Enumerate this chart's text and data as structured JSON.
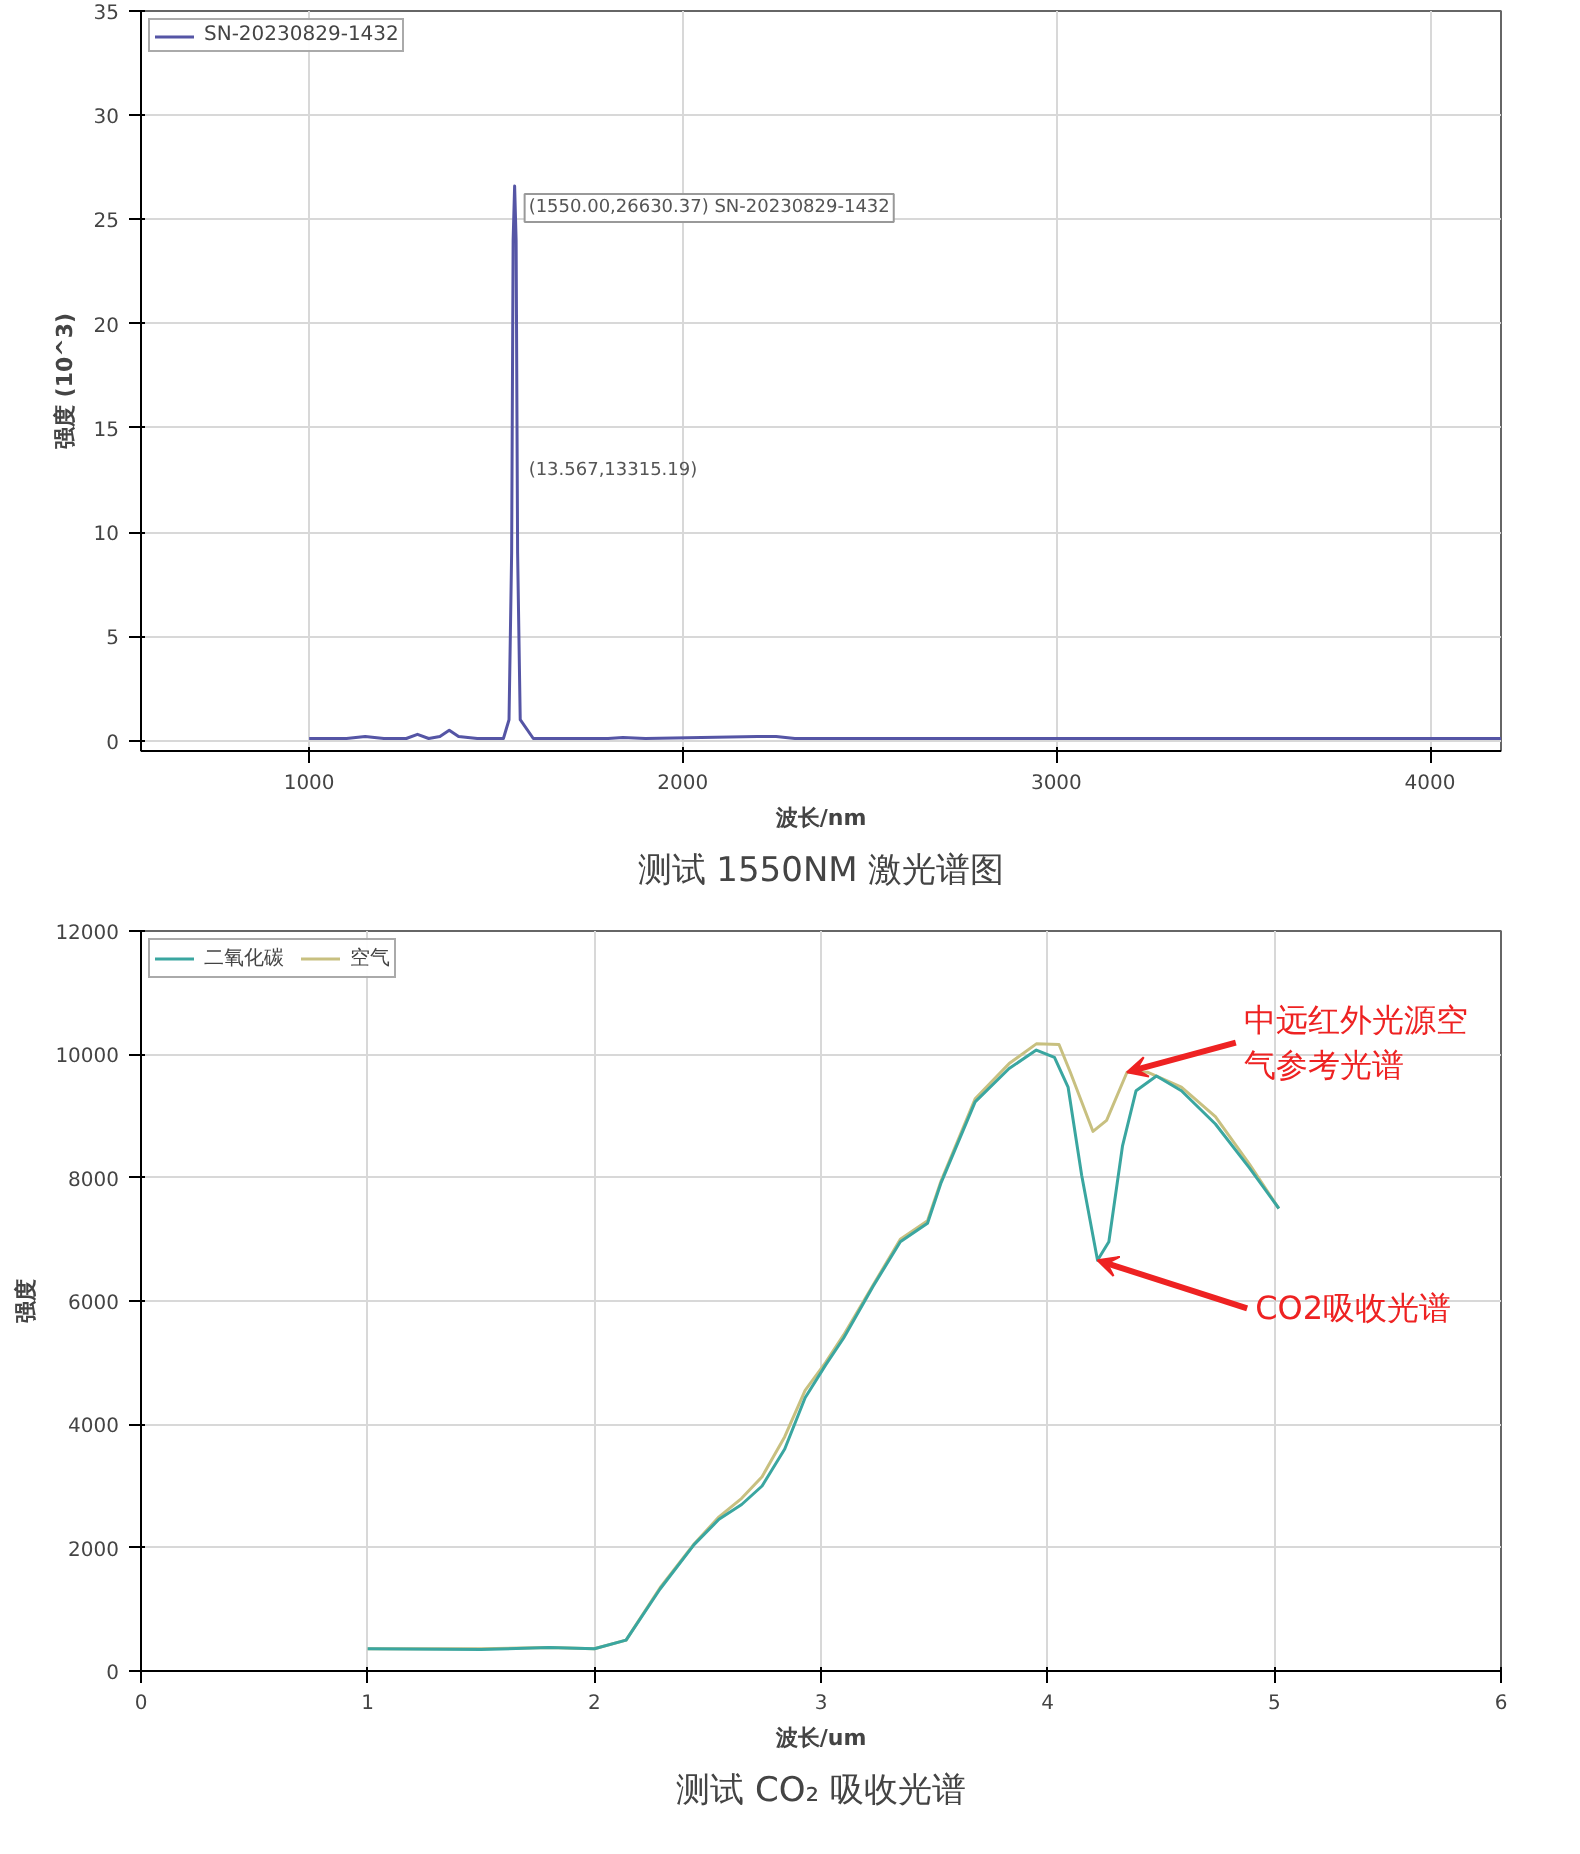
{
  "chart_data": [
    {
      "type": "line",
      "title": "测试 1550NM 激光谱图",
      "xlabel": "波长/nm",
      "ylabel": "强度 (10^3)",
      "x": [
        1000,
        1100,
        1150,
        1200,
        1260,
        1290,
        1320,
        1350,
        1375,
        1400,
        1450,
        1520,
        1535,
        1542,
        1546,
        1550,
        1554,
        1558,
        1565,
        1600,
        1800,
        1840,
        1900,
        2200,
        2250,
        2300,
        3000,
        4000,
        4190
      ],
      "series": [
        {
          "name": "SN-20230829-1432",
          "color": "#5555a5",
          "values": [
            0.1,
            0.1,
            0.2,
            0.1,
            0.1,
            0.3,
            0.1,
            0.2,
            0.5,
            0.2,
            0.1,
            0.1,
            1.0,
            9,
            24,
            26.6,
            24,
            9,
            1.0,
            0.1,
            0.1,
            0.15,
            0.1,
            0.2,
            0.2,
            0.1,
            0.1,
            0.1,
            0.1
          ]
        }
      ],
      "xlim": [
        550,
        4190
      ],
      "ylim": [
        -0.5,
        35
      ],
      "xticks": [
        1000,
        2000,
        3000,
        4000
      ],
      "yticks": [
        0,
        5,
        10,
        15,
        20,
        25,
        30,
        35
      ],
      "annotations": [
        {
          "text": "(1550.00,26630.37) SN-20230829-1432",
          "x": 1550,
          "y": 26.6
        },
        {
          "text": "(13.567,13315.19)",
          "x": 1550,
          "y": 13.3
        }
      ],
      "grid": true,
      "legend": "top left",
      "marker": "none",
      "line_style": "solid"
    },
    {
      "type": "line",
      "title": "测试 CO₂ 吸收光谱",
      "xlabel": "波长/um",
      "ylabel": "强度",
      "series": [
        {
          "name": "二氧化碳",
          "color": "#3aa6a0",
          "x": [
            1.0,
            1.5,
            1.8,
            2.0,
            2.14,
            2.29,
            2.44,
            2.55,
            2.65,
            2.74,
            2.84,
            2.93,
            3.02,
            3.1,
            3.23,
            3.35,
            3.47,
            3.53,
            3.68,
            3.83,
            3.95,
            4.03,
            4.09,
            4.15,
            4.22,
            4.27,
            4.33,
            4.39,
            4.48,
            4.59,
            4.74,
            4.89,
            5.02
          ],
          "values": [
            360,
            350,
            380,
            360,
            500,
            1330,
            2050,
            2460,
            2700,
            3000,
            3600,
            4430,
            4960,
            5400,
            6240,
            6960,
            7260,
            7920,
            9230,
            9770,
            10070,
            9950,
            9470,
            8040,
            6660,
            6960,
            8510,
            9410,
            9650,
            9410,
            8870,
            8160,
            7500
          ]
        },
        {
          "name": "空气",
          "color": "#c8c080",
          "x": [
            1.0,
            1.5,
            1.8,
            2.0,
            2.14,
            2.29,
            2.44,
            2.55,
            2.65,
            2.74,
            2.84,
            2.93,
            3.02,
            3.1,
            3.23,
            3.35,
            3.47,
            3.53,
            3.68,
            3.83,
            3.95,
            4.05,
            4.1,
            4.2,
            4.26,
            4.35,
            4.44,
            4.59,
            4.74,
            4.89,
            5.02
          ],
          "values": [
            360,
            360,
            380,
            360,
            500,
            1350,
            2060,
            2500,
            2800,
            3150,
            3800,
            4550,
            5000,
            5450,
            6260,
            7000,
            7300,
            7950,
            9280,
            9850,
            10170,
            10160,
            9710,
            8750,
            8930,
            9710,
            9710,
            9470,
            8990,
            8220,
            7500
          ]
        }
      ],
      "xlim": [
        0,
        6
      ],
      "ylim": [
        0,
        12000
      ],
      "xticks": [
        0,
        1,
        2,
        3,
        4,
        5,
        6
      ],
      "yticks": [
        0,
        2000,
        4000,
        6000,
        8000,
        10000,
        12000
      ],
      "annotations": [
        {
          "text": "中远红外光源空气参考光谱",
          "x": 4.35,
          "y": 9710
        },
        {
          "text": "CO2吸收光谱",
          "x": 4.22,
          "y": 6660
        }
      ],
      "grid": true,
      "legend": "top left",
      "marker": "none",
      "line_style": "solid"
    }
  ]
}
